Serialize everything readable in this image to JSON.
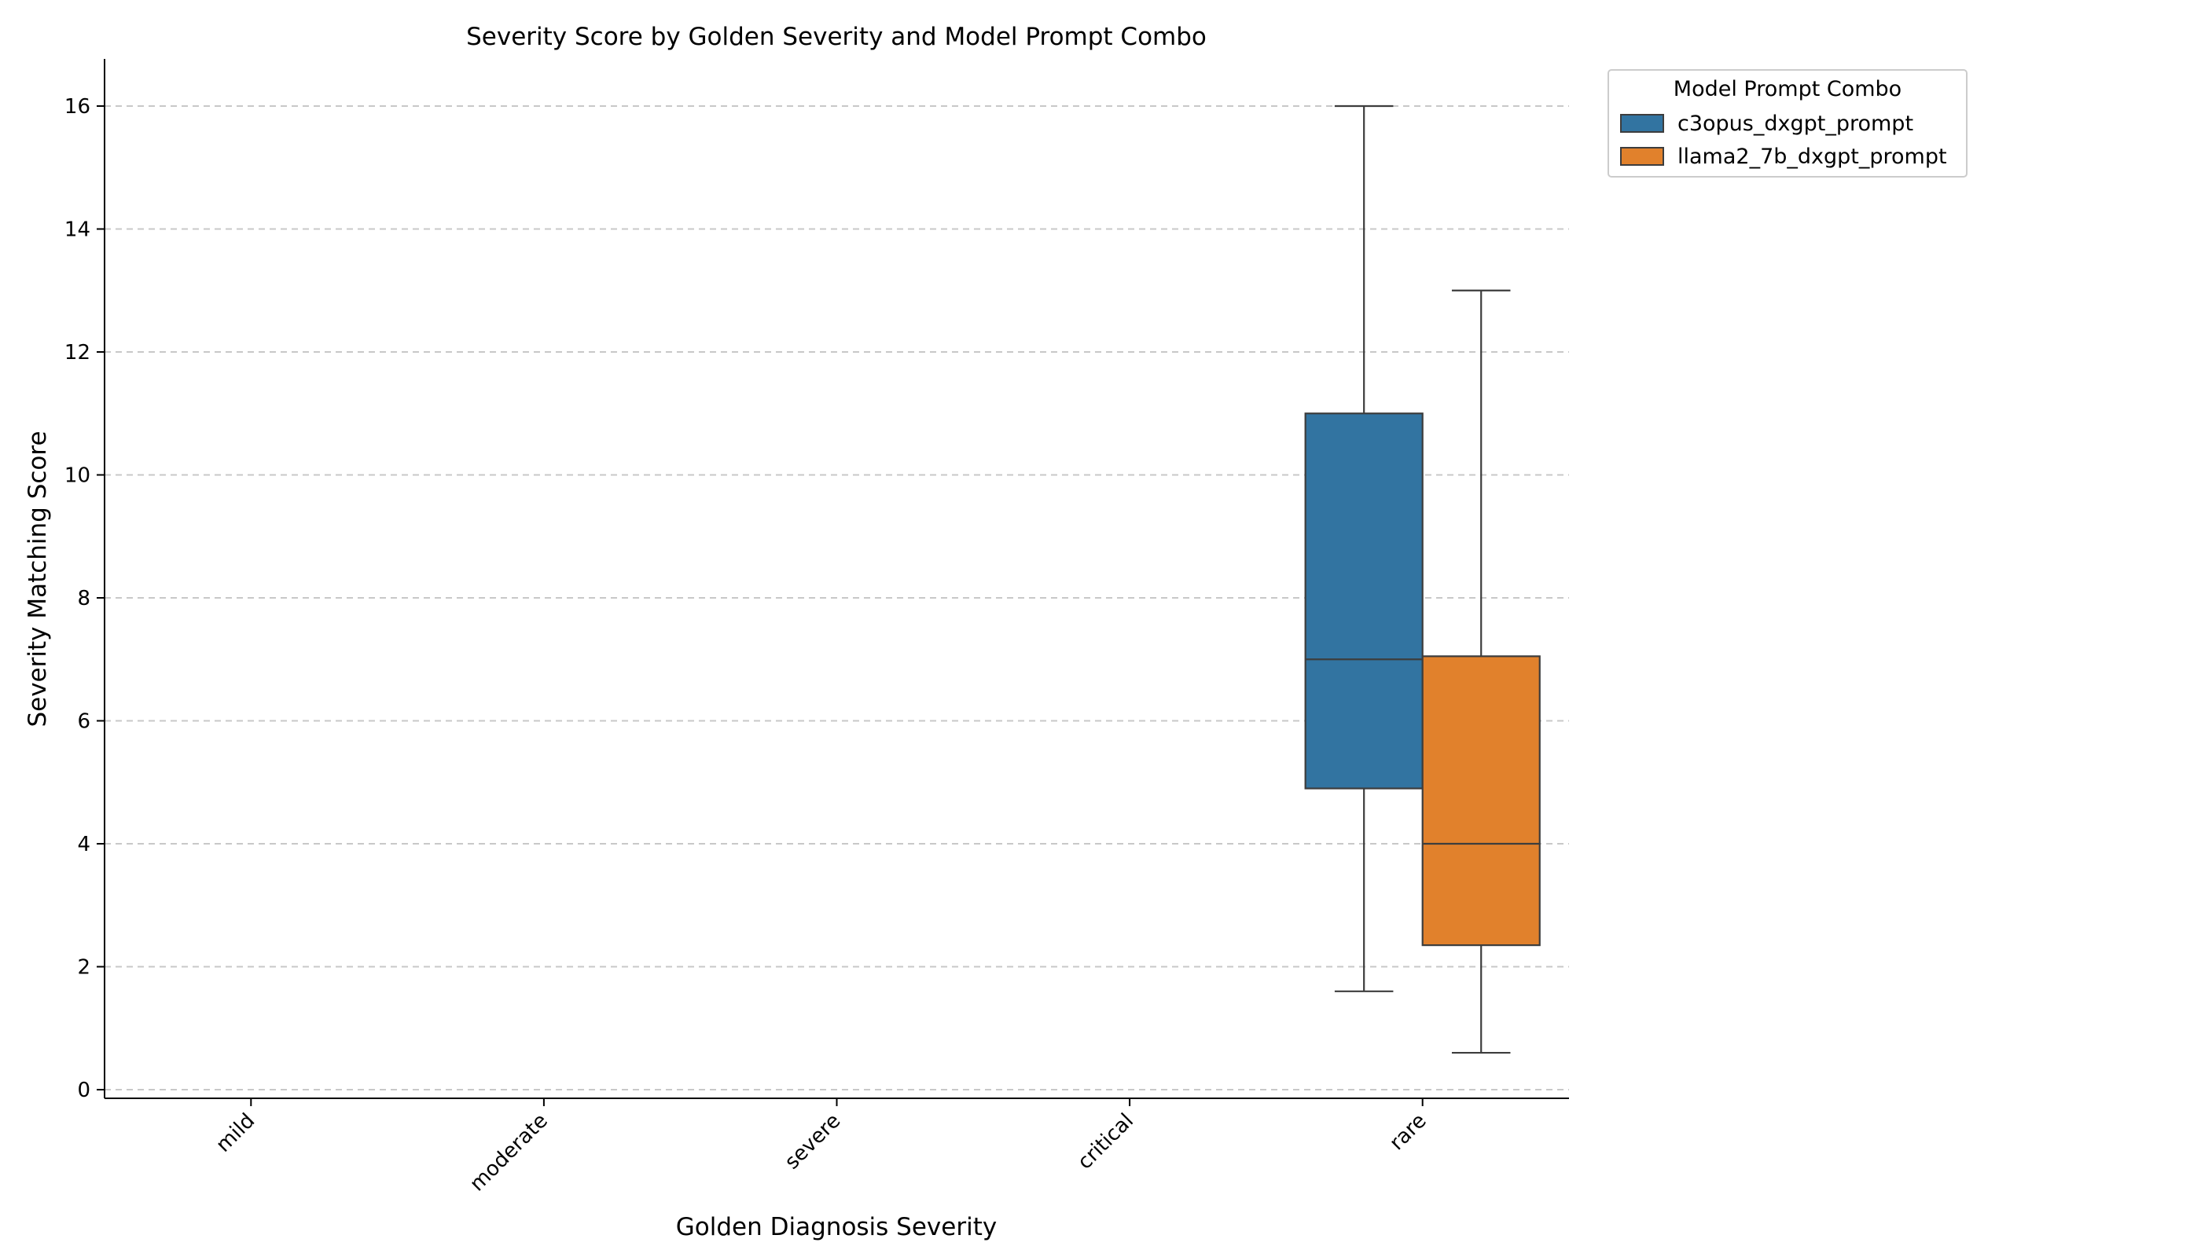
{
  "chart_data": {
    "type": "box",
    "title": "Severity Score by Golden Severity and Model Prompt Combo",
    "xlabel": "Golden Diagnosis Severity",
    "ylabel": "Severity Matching Score",
    "categories": [
      "mild",
      "moderate",
      "severe",
      "critical",
      "rare"
    ],
    "yticks": [
      "0",
      "2",
      "4",
      "6",
      "8",
      "10",
      "12",
      "14",
      "16"
    ],
    "ylim": [
      -0.15,
      16.75
    ],
    "grid": "y-dashed",
    "legend": {
      "title": "Model Prompt Combo",
      "placement": "outside-top-right"
    },
    "series": [
      {
        "name": "c3opus_dxgpt_prompt",
        "color": "#3274a1",
        "boxes": [
          null,
          null,
          null,
          null,
          {
            "whisker_low": 1.6,
            "q1": 4.9,
            "median": 7.0,
            "q3": 11.0,
            "whisker_high": 16.0
          }
        ]
      },
      {
        "name": "llama2_7b_dxgpt_prompt",
        "color": "#e1812c",
        "boxes": [
          null,
          null,
          null,
          null,
          {
            "whisker_low": 0.6,
            "q1": 2.35,
            "median": 4.0,
            "q3": 7.05,
            "whisker_high": 13.0
          }
        ]
      }
    ]
  }
}
